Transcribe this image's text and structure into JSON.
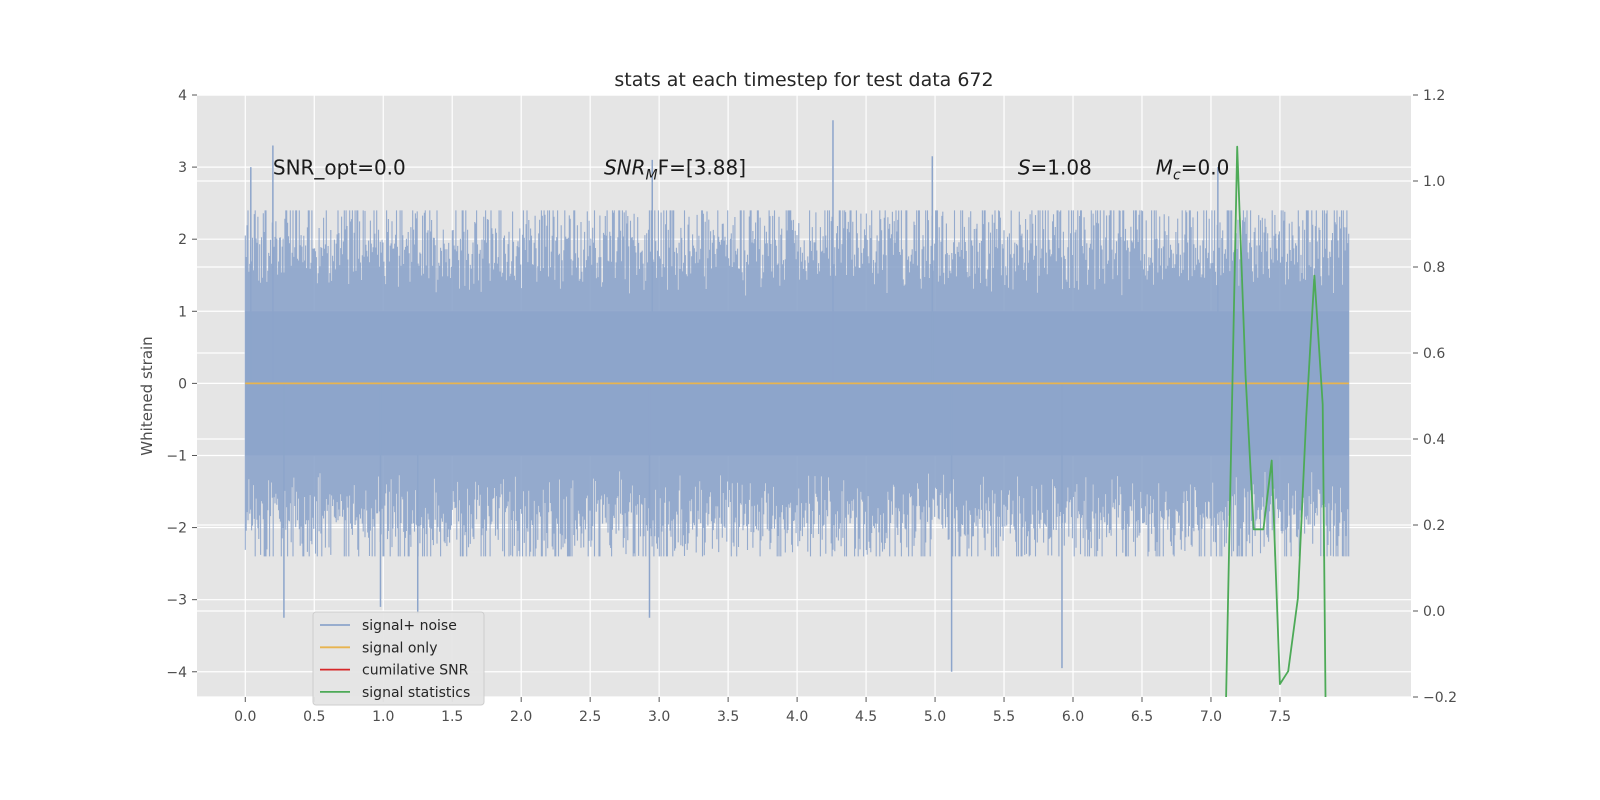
{
  "chart_data": {
    "type": "line",
    "title": "stats at each timestep for test data 672",
    "ylabel": "Whitened strain",
    "xlabel": "",
    "xlim": [
      -0.35,
      8.45
    ],
    "ylim": [
      -4.35,
      4
    ],
    "y2lim": [
      -0.2,
      1.2
    ],
    "x_ticks": [
      "0.0",
      "0.5",
      "1.0",
      "1.5",
      "2.0",
      "2.5",
      "3.0",
      "3.5",
      "4.0",
      "4.5",
      "5.0",
      "5.5",
      "6.0",
      "6.5",
      "7.0",
      "7.5"
    ],
    "y_ticks": [
      "4",
      "3",
      "2",
      "1",
      "0",
      "−1",
      "−2",
      "−3",
      "−4"
    ],
    "y2_ticks": [
      "1.2",
      "1.0",
      "0.8",
      "0.6",
      "0.4",
      "0.2",
      "0.0",
      "−0.2"
    ],
    "grid": true,
    "legend": "lower-left",
    "annotations": [
      {
        "x": 0.2,
        "y": 2.9,
        "text": "SNR_opt=0.0"
      },
      {
        "x": 2.6,
        "y": 2.9,
        "text": "SNR",
        "sub": "M",
        "rest": "F=[3.88]"
      },
      {
        "x": 5.6,
        "y": 2.9,
        "text": "S",
        "rest": "=1.08"
      },
      {
        "x": 6.6,
        "y": 2.9,
        "text": "M",
        "sub": "c",
        "rest": "=0.0"
      }
    ],
    "series": [
      {
        "name": "signal+ noise",
        "color": "#8da5cb",
        "axis": "left",
        "description": "whitened noise, ~Gaussian, x from 0.0 to 8.0, envelope roughly ±2 with spikes",
        "x_range": [
          0.0,
          8.0
        ],
        "spikes": [
          {
            "x": 0.04,
            "y": 3.0
          },
          {
            "x": 0.2,
            "y": 3.3
          },
          {
            "x": 4.26,
            "y": 3.65
          },
          {
            "x": 2.95,
            "y": 3.1
          },
          {
            "x": 4.98,
            "y": 3.15
          },
          {
            "x": 7.05,
            "y": 3.0
          },
          {
            "x": 5.12,
            "y": -4.0
          },
          {
            "x": 5.92,
            "y": -3.95
          },
          {
            "x": 0.28,
            "y": -3.25
          },
          {
            "x": 2.93,
            "y": -3.25
          },
          {
            "x": 0.98,
            "y": -3.1
          },
          {
            "x": 1.25,
            "y": -3.2
          }
        ]
      },
      {
        "name": "signal only",
        "color": "#e8b44f",
        "axis": "left",
        "x": [
          0.0,
          8.0
        ],
        "y": [
          0.0,
          0.0
        ]
      },
      {
        "name": "cumilative SNR",
        "color": "#d62728",
        "axis": "left",
        "x": [],
        "y": []
      },
      {
        "name": "signal statistics",
        "color": "#4daa57",
        "axis": "right",
        "x": [
          7.11,
          7.19,
          7.25,
          7.31,
          7.38,
          7.44,
          7.5,
          7.56,
          7.63,
          7.69,
          7.75,
          7.81,
          7.83
        ],
        "y": [
          -0.2,
          1.08,
          0.55,
          0.19,
          0.19,
          0.35,
          -0.17,
          -0.14,
          0.03,
          0.45,
          0.78,
          0.48,
          -0.2
        ]
      }
    ]
  }
}
